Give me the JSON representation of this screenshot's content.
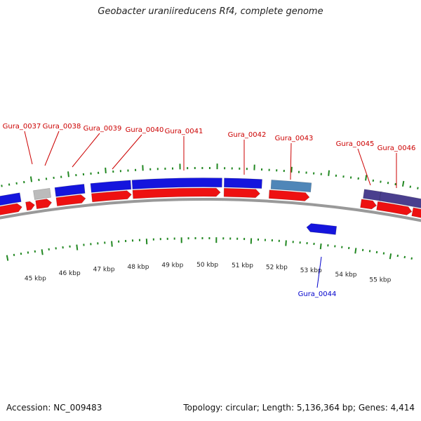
{
  "title": "Geobacter uraniireducens Rf4, complete genome",
  "footer": {
    "accession": "Accession: NC_009483",
    "summary": "Topology: circular; Length: 5,136,364 bp; Genes: 4,414"
  },
  "colors": {
    "strand_line": "#999999",
    "tick": "#228822",
    "label_forward": "#cc0000",
    "label_reverse": "#0000cc",
    "gene_blue": "#1515dd",
    "gene_red": "#ee1111",
    "gene_grey": "#bbbbbb",
    "gene_lightblue": "#4f86b8",
    "gene_purple": "#4a3f8e"
  },
  "scale": {
    "labels": [
      "45 kbp",
      "46 kbp",
      "47 kbp",
      "48 kbp",
      "49 kbp",
      "50 kbp",
      "51 kbp",
      "52 kbp",
      "53 kbp",
      "54 kbp",
      "55 kbp"
    ]
  },
  "gene_labels": {
    "forward": [
      "Gura_0037",
      "Gura_0038",
      "Gura_0039",
      "Gura_0040",
      "Gura_0041",
      "Gura_0042",
      "Gura_0043",
      "Gura_0045",
      "Gura_0046"
    ],
    "reverse": [
      "Gura_0044"
    ]
  }
}
